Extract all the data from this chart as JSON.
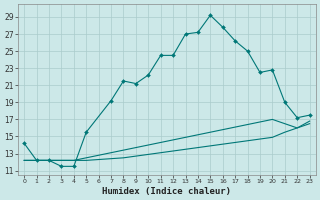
{
  "xlabel": "Humidex (Indice chaleur)",
  "bg_color": "#cce8e8",
  "grid_color": "#aacccc",
  "line_color": "#007777",
  "xlim": [
    -0.5,
    23.5
  ],
  "ylim": [
    10.5,
    30.5
  ],
  "xticks": [
    0,
    1,
    2,
    3,
    4,
    5,
    6,
    7,
    8,
    9,
    10,
    11,
    12,
    13,
    14,
    15,
    16,
    17,
    18,
    19,
    20,
    21,
    22,
    23
  ],
  "yticks": [
    11,
    13,
    15,
    17,
    19,
    21,
    23,
    25,
    27,
    29
  ],
  "line1_x": [
    0,
    1,
    2,
    3,
    4,
    5,
    7,
    8,
    9,
    10,
    11,
    12,
    13,
    14,
    15,
    16,
    17,
    18,
    19,
    20,
    21,
    22,
    23
  ],
  "line1_y": [
    14.2,
    12.2,
    12.2,
    11.5,
    11.5,
    15.5,
    19.2,
    21.5,
    21.2,
    22.2,
    24.5,
    24.5,
    27.0,
    27.2,
    29.2,
    27.8,
    26.2,
    25.0,
    22.5,
    22.8,
    19.0,
    17.2,
    17.5
  ],
  "line2_x": [
    0,
    1,
    2,
    3,
    4,
    5,
    6,
    7,
    8,
    9,
    10,
    11,
    12,
    13,
    14,
    15,
    16,
    17,
    18,
    19,
    20,
    21,
    22,
    23
  ],
  "line2_y": [
    12.2,
    12.2,
    12.2,
    12.2,
    12.2,
    12.5,
    12.8,
    13.1,
    13.4,
    13.7,
    14.0,
    14.3,
    14.6,
    14.9,
    15.2,
    15.5,
    15.8,
    16.1,
    16.4,
    16.7,
    17.0,
    16.5,
    16.0,
    16.5
  ],
  "line3_x": [
    0,
    1,
    2,
    3,
    4,
    5,
    6,
    7,
    8,
    9,
    10,
    11,
    12,
    13,
    14,
    15,
    16,
    17,
    18,
    19,
    20,
    21,
    22,
    23
  ],
  "line3_y": [
    12.2,
    12.2,
    12.2,
    12.2,
    12.2,
    12.2,
    12.3,
    12.4,
    12.5,
    12.7,
    12.9,
    13.1,
    13.3,
    13.5,
    13.7,
    13.9,
    14.1,
    14.3,
    14.5,
    14.7,
    14.9,
    15.5,
    16.0,
    16.8
  ]
}
